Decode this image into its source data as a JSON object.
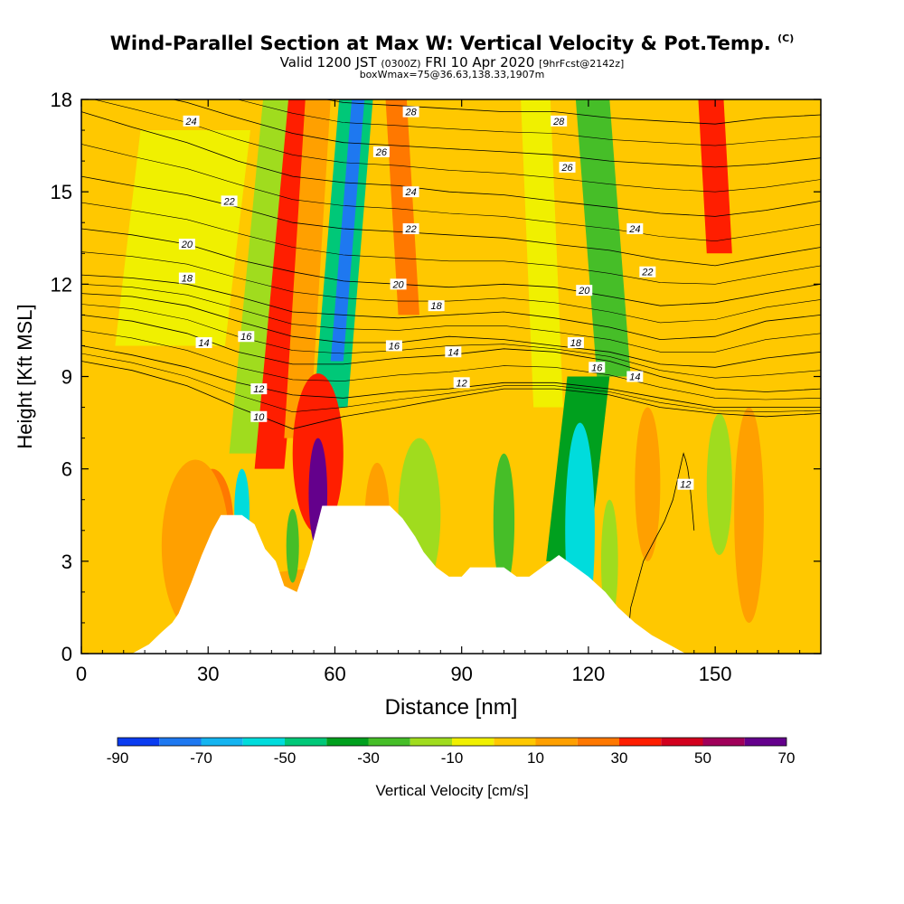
{
  "title": {
    "main": "Wind-Parallel Section at Max W: Vertical Velocity & Pot.Temp.",
    "copyright": "(C)",
    "valid_prefix": "Valid 1200 JST",
    "valid_utc": "(0300Z)",
    "valid_date": "FRI 10 Apr 2020",
    "forecast": "[9hrFcst@2142z]",
    "box_info": "boxWmax=75@36.63,138.33,1907m"
  },
  "chart_data": {
    "type": "heatmap",
    "xlabel": "Distance [nm]",
    "ylabel": "Height [Kft MSL]",
    "xlim": [
      0,
      175
    ],
    "ylim": [
      0,
      18
    ],
    "xticks": [
      "0",
      "30",
      "60",
      "90",
      "120",
      "150"
    ],
    "xtick_values": [
      0,
      30,
      60,
      90,
      120,
      150
    ],
    "yticks": [
      "0",
      "3",
      "6",
      "9",
      "12",
      "15",
      "18"
    ],
    "ytick_values": [
      0,
      3,
      6,
      9,
      12,
      15,
      18
    ],
    "colorbar": {
      "label": "Vertical Velocity [cm/s]",
      "tick_labels": [
        "-90",
        "-70",
        "-50",
        "-30",
        "-10",
        "10",
        "30",
        "50",
        "70"
      ],
      "bins": [
        -90,
        -80,
        -70,
        -60,
        -50,
        -40,
        -30,
        -20,
        -10,
        0,
        10,
        20,
        30,
        40,
        50,
        60,
        70
      ],
      "colors": [
        "#0a3cf0",
        "#1e78f0",
        "#14b4f0",
        "#00dcdc",
        "#00c878",
        "#00a01e",
        "#46be28",
        "#a0dc1e",
        "#f0f000",
        "#ffc800",
        "#ffa000",
        "#ff7800",
        "#ff1e00",
        "#d2001e",
        "#a0005a",
        "#64008c"
      ]
    },
    "background_velocity": 5,
    "velocity_bands": [
      {
        "x0": 35,
        "x1": 42,
        "y0": 6.5,
        "y1": 18,
        "value": -20,
        "lean": 8
      },
      {
        "x0": 41,
        "x1": 48,
        "y0": 6,
        "y1": 18,
        "value": 35,
        "lean": 8
      },
      {
        "x0": 48,
        "x1": 54,
        "y0": 7,
        "y1": 18,
        "value": 18,
        "lean": 5
      },
      {
        "x0": 55,
        "x1": 63,
        "y0": 8,
        "y1": 18,
        "value": -45,
        "lean": 6
      },
      {
        "x0": 59,
        "x1": 62,
        "y0": 9.5,
        "y1": 18,
        "value": -80,
        "lean": 5
      },
      {
        "x0": 75,
        "x1": 80,
        "y0": 11,
        "y1": 18,
        "value": 25,
        "lean": -3
      },
      {
        "x0": 107,
        "x1": 114,
        "y0": 8,
        "y1": 18,
        "value": -10,
        "lean": -3
      },
      {
        "x0": 110,
        "x1": 120,
        "y0": 3,
        "y1": 9,
        "value": -40,
        "lean": 5
      },
      {
        "x0": 122,
        "x1": 130,
        "y0": 9,
        "y1": 18,
        "value": -25,
        "lean": -5
      },
      {
        "x0": 148,
        "x1": 154,
        "y0": 13,
        "y1": 18,
        "value": 38,
        "lean": -2
      },
      {
        "x0": 8,
        "x1": 34,
        "y0": 10,
        "y1": 17,
        "value": -5,
        "lean": 6
      }
    ],
    "velocity_blobs": [
      {
        "x": 31,
        "y": 4.2,
        "rx": 5,
        "ry": 1.8,
        "value": 25
      },
      {
        "x": 27,
        "y": 3.5,
        "rx": 8,
        "ry": 2.8,
        "value": 12
      },
      {
        "x": 38,
        "y": 4.6,
        "rx": 1.8,
        "ry": 1.4,
        "value": -55
      },
      {
        "x": 56,
        "y": 6.5,
        "rx": 6,
        "ry": 2.6,
        "value": 35
      },
      {
        "x": 56,
        "y": 5.2,
        "rx": 2.2,
        "ry": 1.8,
        "value": 68
      },
      {
        "x": 50,
        "y": 3.5,
        "rx": 1.5,
        "ry": 1.2,
        "value": -30
      },
      {
        "x": 70,
        "y": 4.2,
        "rx": 3,
        "ry": 2,
        "value": 12
      },
      {
        "x": 80,
        "y": 4.5,
        "rx": 5,
        "ry": 2.5,
        "value": -12
      },
      {
        "x": 100,
        "y": 4.3,
        "rx": 2.5,
        "ry": 2.2,
        "value": -30
      },
      {
        "x": 118,
        "y": 4,
        "rx": 3.5,
        "ry": 3.5,
        "value": -55
      },
      {
        "x": 125,
        "y": 3,
        "rx": 2,
        "ry": 2,
        "value": -15
      },
      {
        "x": 134,
        "y": 5.5,
        "rx": 3,
        "ry": 2.5,
        "value": 15
      },
      {
        "x": 151,
        "y": 5.5,
        "rx": 3,
        "ry": 2.3,
        "value": -20
      },
      {
        "x": 158,
        "y": 4.5,
        "rx": 3.5,
        "ry": 3.5,
        "value": 15
      },
      {
        "x": 63,
        "y": 1,
        "rx": 40,
        "ry": 1.8,
        "value": 12
      }
    ],
    "terrain": [
      [
        0,
        0
      ],
      [
        12,
        0
      ],
      [
        16,
        0.3
      ],
      [
        19,
        0.7
      ],
      [
        21.5,
        1.0
      ],
      [
        23,
        1.3
      ],
      [
        26,
        2.3
      ],
      [
        28.5,
        3.2
      ],
      [
        31,
        4.0
      ],
      [
        33,
        4.5
      ],
      [
        38,
        4.5
      ],
      [
        41,
        4.2
      ],
      [
        43.5,
        3.4
      ],
      [
        46,
        3.0
      ],
      [
        48,
        2.2
      ],
      [
        51,
        2.0
      ],
      [
        54,
        3.2
      ],
      [
        57,
        4.8
      ],
      [
        73,
        4.8
      ],
      [
        76,
        4.4
      ],
      [
        79,
        3.8
      ],
      [
        81,
        3.3
      ],
      [
        84,
        2.8
      ],
      [
        87,
        2.5
      ],
      [
        90,
        2.5
      ],
      [
        92,
        2.8
      ],
      [
        100,
        2.8
      ],
      [
        103,
        2.5
      ],
      [
        106,
        2.5
      ],
      [
        109,
        2.8
      ],
      [
        113,
        3.2
      ],
      [
        117,
        2.8
      ],
      [
        120,
        2.5
      ],
      [
        124,
        2.0
      ],
      [
        127,
        1.5
      ],
      [
        131,
        1.0
      ],
      [
        135,
        0.6
      ],
      [
        139,
        0.3
      ],
      [
        143,
        0
      ],
      [
        175,
        0
      ]
    ],
    "theta_contours": [
      {
        "label": "10",
        "ys": [
          9.5,
          9.2,
          8.7,
          8.0,
          7.3,
          7.7,
          8.0,
          8.3,
          8.6,
          8.6,
          8.4,
          8.0,
          7.8,
          7.7,
          7.8
        ]
      },
      {
        "label": "12",
        "ys": [
          10.0,
          9.7,
          9.3,
          8.8,
          8.4,
          8.3,
          8.5,
          8.6,
          8.8,
          8.8,
          8.6,
          8.3,
          8.0,
          8.0,
          8.0
        ]
      },
      {
        "label": "14",
        "ys": [
          11.0,
          10.8,
          10.4,
          9.8,
          9.4,
          9.4,
          9.6,
          9.7,
          9.9,
          9.8,
          9.5,
          9.0,
          8.6,
          8.5,
          8.6
        ]
      },
      {
        "label": "16",
        "ys": [
          11.7,
          11.6,
          11.3,
          10.8,
          10.3,
          10.1,
          10.1,
          10.3,
          10.2,
          10.0,
          9.8,
          9.4,
          9.3,
          9.6,
          9.8
        ]
      },
      {
        "label": "18",
        "ys": [
          12.3,
          12.2,
          12.0,
          11.6,
          11.1,
          11.0,
          10.9,
          11.0,
          11.1,
          10.9,
          10.6,
          10.2,
          10.3,
          10.8,
          11.0
        ]
      },
      {
        "label": "20",
        "ys": [
          13.8,
          13.6,
          13.3,
          12.8,
          12.4,
          12.1,
          12.0,
          11.9,
          12.0,
          11.9,
          11.6,
          11.3,
          11.4,
          11.7,
          12.0
        ]
      },
      {
        "label": "22",
        "ys": [
          15.5,
          15.2,
          14.9,
          14.5,
          14.0,
          13.8,
          13.7,
          13.6,
          13.5,
          13.3,
          13.1,
          12.8,
          12.6,
          12.9,
          13.2
        ]
      },
      {
        "label": "24",
        "ys": [
          17.6,
          17.1,
          16.6,
          16.0,
          15.5,
          15.3,
          15.2,
          15.0,
          14.9,
          14.7,
          14.5,
          14.3,
          14.2,
          14.4,
          14.7
        ]
      },
      {
        "label": "26",
        "ys": [
          18.6,
          18.3,
          17.9,
          17.4,
          16.9,
          16.6,
          16.5,
          16.4,
          16.3,
          16.2,
          16.0,
          15.9,
          15.8,
          15.9,
          16.1
        ]
      },
      {
        "label": "28",
        "ys": [
          19.5,
          19.3,
          19.0,
          18.6,
          18.2,
          17.9,
          17.8,
          17.7,
          17.6,
          17.6,
          17.4,
          17.3,
          17.2,
          17.4,
          17.5
        ]
      }
    ],
    "theta_12_low": {
      "label": "12",
      "x": [
        129,
        130,
        133,
        138,
        140,
        141,
        142,
        142.5,
        143,
        143.5,
        144,
        144.5,
        145
      ],
      "y": [
        0,
        1.5,
        3.0,
        4.3,
        5.0,
        5.6,
        6.2,
        6.5,
        6.3,
        6.0,
        5.5,
        4.8,
        4.0
      ]
    },
    "contour_x": [
      0,
      12,
      25,
      37,
      50,
      62,
      75,
      87,
      100,
      112,
      125,
      137,
      150,
      162,
      175
    ],
    "contour_labels": [
      {
        "text": "24",
        "x": 26,
        "y": 17.3
      },
      {
        "text": "22",
        "x": 35,
        "y": 14.7
      },
      {
        "text": "20",
        "x": 25,
        "y": 13.3
      },
      {
        "text": "18",
        "x": 25,
        "y": 12.2
      },
      {
        "text": "14",
        "x": 29,
        "y": 10.1
      },
      {
        "text": "16",
        "x": 39,
        "y": 10.3
      },
      {
        "text": "12",
        "x": 42,
        "y": 8.6
      },
      {
        "text": "10",
        "x": 42,
        "y": 7.7
      },
      {
        "text": "28",
        "x": 78,
        "y": 17.6
      },
      {
        "text": "26",
        "x": 71,
        "y": 16.3
      },
      {
        "text": "24",
        "x": 78,
        "y": 15.0
      },
      {
        "text": "22",
        "x": 78,
        "y": 13.8
      },
      {
        "text": "20",
        "x": 75,
        "y": 12.0
      },
      {
        "text": "18",
        "x": 84,
        "y": 11.3
      },
      {
        "text": "16",
        "x": 74,
        "y": 10.0
      },
      {
        "text": "14",
        "x": 88,
        "y": 9.8
      },
      {
        "text": "12",
        "x": 90,
        "y": 8.8
      },
      {
        "text": "28",
        "x": 113,
        "y": 17.3
      },
      {
        "text": "26",
        "x": 115,
        "y": 15.8
      },
      {
        "text": "24",
        "x": 131,
        "y": 13.8
      },
      {
        "text": "22",
        "x": 134,
        "y": 12.4
      },
      {
        "text": "20",
        "x": 119,
        "y": 11.8
      },
      {
        "text": "18",
        "x": 117,
        "y": 10.1
      },
      {
        "text": "16",
        "x": 122,
        "y": 9.3
      },
      {
        "text": "14",
        "x": 131,
        "y": 9.0
      },
      {
        "text": "12",
        "x": 143,
        "y": 5.5
      }
    ]
  }
}
